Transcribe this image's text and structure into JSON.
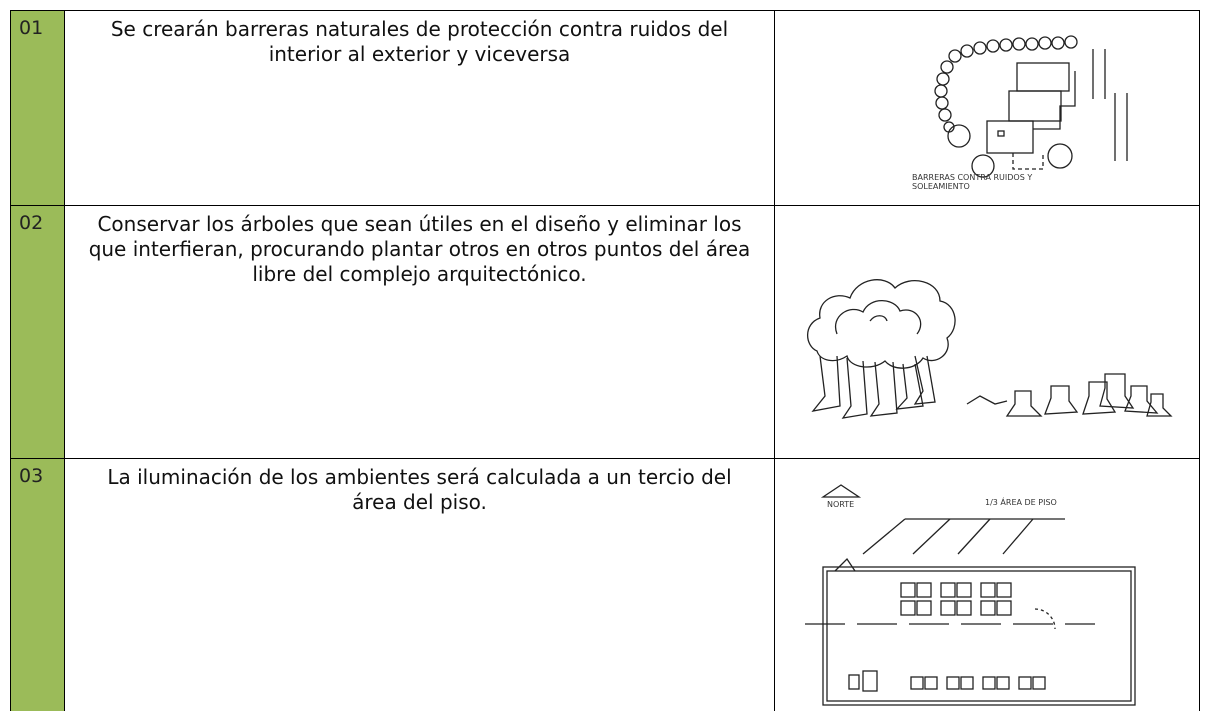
{
  "rows": [
    {
      "number": "01",
      "text": "Se crearán barreras naturales de protección contra ruidos del interior al exterior y viceversa",
      "image": {
        "caption": "BARRERAS CONTRA RUIDOS Y SOLEAMIENTO"
      }
    },
    {
      "number": "02",
      "text": "Conservar los árboles que sean útiles en el diseño y eliminar los que interfieran, procurando plantar otros en otros puntos del área libre del complejo arquitectónico."
    },
    {
      "number": "03",
      "text": "La iluminación de los ambientes será calculada a un tercio del área del piso.",
      "image": {
        "north": "NORTE",
        "label": "1/3 ÁREA DE PISO"
      }
    }
  ]
}
